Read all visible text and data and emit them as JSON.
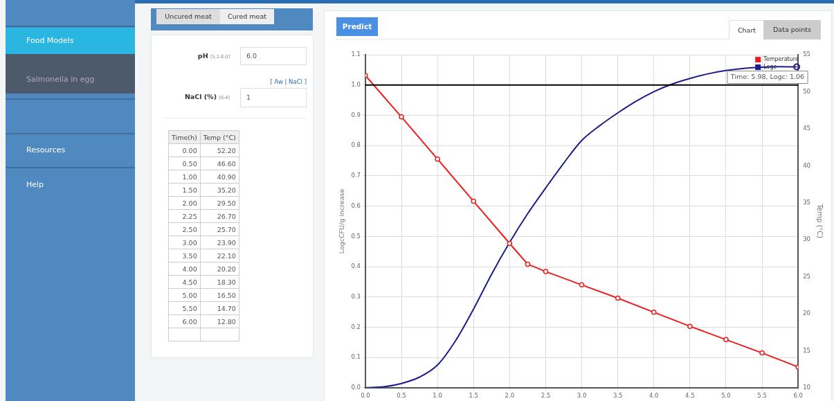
{
  "chart_data": [
    {
      "type": "other",
      "annotations": [
        "Food Models",
        "Salmonella in egg",
        "Resources",
        "Help",
        "Uncured meat",
        "Cured meat",
        "pH",
        "[5.2-8.0]",
        "6.0",
        "[ Aw | NaCl ]",
        "NaCl (%)",
        "[0-4]",
        "1",
        "Predict",
        "Chart",
        "Data points",
        "Time(h)",
        "Temp (°C)",
        "0.00",
        "52.20",
        "0.50",
        "46.60",
        "1.00",
        "40.90",
        "1.50",
        "35.20",
        "2.00",
        "29.50",
        "2.25",
        "26.70",
        "2.50",
        "25.70",
        "3.00",
        "23.90",
        "3.50",
        "22.10",
        "4.00",
        "20.20",
        "4.50",
        "18.30",
        "5.00",
        "16.50",
        "5.50",
        "14.70",
        "6.00",
        "12.80"
      ]
    },
    {
      "type": "line",
      "ylabel": "LogcCFU/g increase",
      "y2label": "Temp (°C)",
      "xlim": [
        0,
        6
      ],
      "xticks": [
        {
          "value": 0,
          "label": "0.0"
        },
        {
          "value": 0.5,
          "label": "0.5"
        },
        {
          "value": 1,
          "label": "1.0"
        },
        {
          "value": 1.5,
          "label": "1.5"
        },
        {
          "value": 2,
          "label": "2.0"
        },
        {
          "value": 2.5,
          "label": "2.5"
        },
        {
          "value": 3,
          "label": "3.0"
        },
        {
          "value": 3.5,
          "label": "3.5"
        },
        {
          "value": 4,
          "label": "4.0"
        },
        {
          "value": 4.5,
          "label": "4.5"
        },
        {
          "value": 5,
          "label": "5.0"
        },
        {
          "value": 5.5,
          "label": "5.5"
        },
        {
          "value": 6,
          "label": "6.0"
        }
      ],
      "ylim": [
        0,
        1.1
      ],
      "yticks": [
        {
          "value": 0,
          "label": "0.0"
        },
        0.1,
        0.2,
        0.3,
        0.4,
        0.5,
        0.6,
        0.7,
        0.8,
        0.9,
        {
          "value": 1,
          "label": "1.0"
        },
        1.1
      ],
      "y2lim": [
        10,
        55
      ],
      "y2ticks": [
        10,
        15,
        20,
        25,
        30,
        35,
        40,
        45,
        50,
        55
      ],
      "grid": true,
      "legend": "top right",
      "series": [
        {
          "name": "Temperature",
          "color": "#ee1c1c",
          "axis": "y2",
          "marker": "circle",
          "x": [
            0,
            0.5,
            1,
            1.5,
            2,
            2.25,
            2.5,
            3,
            3.5,
            4,
            4.5,
            5,
            5.5,
            6
          ],
          "values": [
            52.2,
            46.6,
            40.9,
            35.2,
            29.5,
            26.7,
            25.7,
            23.9,
            22.1,
            20.2,
            18.3,
            16.5,
            14.7,
            12.8
          ]
        },
        {
          "name": "Logc",
          "color": "#1c1c8c",
          "marker": "none",
          "x": [
            0,
            0.25,
            0.5,
            0.75,
            1,
            1.25,
            1.5,
            1.75,
            2,
            2.25,
            2.5,
            2.75,
            3,
            3.25,
            3.5,
            3.75,
            4,
            4.25,
            4.5,
            4.75,
            5,
            5.25,
            5.5,
            5.75,
            5.98
          ],
          "values": [
            0,
            0.003,
            0.014,
            0.035,
            0.075,
            0.155,
            0.26,
            0.375,
            0.48,
            0.575,
            0.66,
            0.742,
            0.817,
            0.866,
            0.908,
            0.946,
            0.978,
            1.003,
            1.022,
            1.037,
            1.048,
            1.055,
            1.059,
            1.061,
            1.06
          ]
        }
      ],
      "ref_lines": [
        {
          "axis": "y",
          "value": 1,
          "color": "#000000"
        }
      ],
      "annotations": [
        {
          "text": "Time: 5.98, Logc: 1.06",
          "x": 5.98,
          "y": 1.06
        }
      ]
    }
  ]
}
